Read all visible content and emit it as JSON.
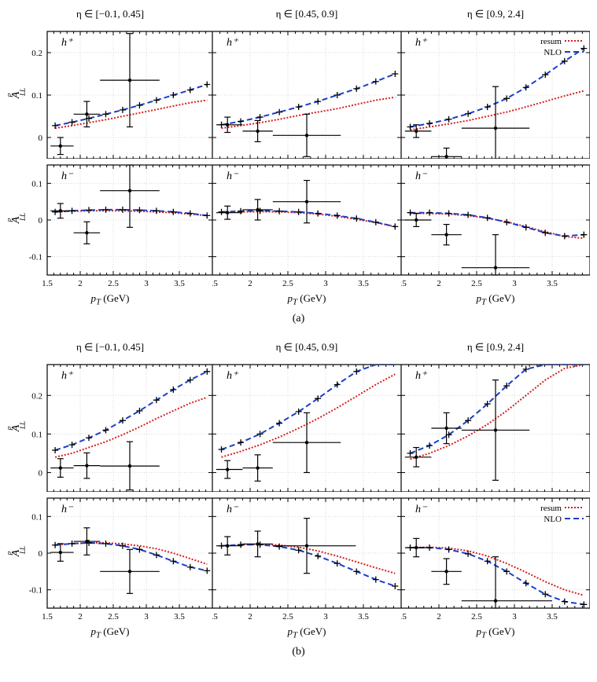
{
  "figure_a": {
    "caption": "(a)",
    "ylabel": "A_{LL}^{d}",
    "xlabel": "p_T (GeV)",
    "col_titles": [
      "η ∈ [−0.1, 0.45]",
      "η ∈ [0.45, 0.9]",
      "η ∈ [0.9, 2.4]"
    ],
    "legend": {
      "resum": "resum",
      "nlo": "NLO"
    },
    "colors": {
      "resum": "#d62020",
      "nlo": "#1a3fc8",
      "data": "#000000",
      "grid": "#d9d9d9",
      "frame": "#000000"
    },
    "xlim": [
      1.5,
      4.0
    ],
    "xticks": [
      1.5,
      2.0,
      2.5,
      3.0,
      3.5
    ],
    "top_row": {
      "label": "h^{+}",
      "ylim": [
        -0.05,
        0.25
      ],
      "yticks": [
        0,
        0.1,
        0.2
      ],
      "panels": [
        {
          "resum_y": [
            0.022,
            0.028,
            0.035,
            0.042,
            0.05,
            0.058,
            0.066,
            0.074,
            0.082,
            0.088
          ],
          "nlo_y": [
            0.028,
            0.036,
            0.045,
            0.055,
            0.065,
            0.076,
            0.088,
            0.1,
            0.112,
            0.125
          ],
          "data": [
            {
              "x": 1.7,
              "y": -0.02,
              "xl": 1.55,
              "xr": 1.9,
              "yl": -0.04,
              "yu": 0.0
            },
            {
              "x": 2.1,
              "y": 0.055,
              "xl": 1.9,
              "xr": 2.3,
              "yl": 0.025,
              "yu": 0.085
            },
            {
              "x": 2.75,
              "y": 0.135,
              "xl": 2.3,
              "xr": 3.2,
              "yl": 0.025,
              "yu": 0.245
            }
          ]
        },
        {
          "resum_y": [
            0.022,
            0.028,
            0.035,
            0.043,
            0.052,
            0.06,
            0.068,
            0.078,
            0.088,
            0.095
          ],
          "nlo_y": [
            0.03,
            0.038,
            0.048,
            0.06,
            0.072,
            0.085,
            0.1,
            0.115,
            0.132,
            0.15
          ],
          "data": [
            {
              "x": 1.7,
              "y": 0.03,
              "xl": 1.55,
              "xr": 1.9,
              "yl": 0.012,
              "yu": 0.048
            },
            {
              "x": 2.1,
              "y": 0.015,
              "xl": 1.9,
              "xr": 2.3,
              "yl": -0.01,
              "yu": 0.04
            },
            {
              "x": 2.75,
              "y": 0.005,
              "xl": 2.3,
              "xr": 3.2,
              "yl": -0.045,
              "yu": 0.055
            }
          ]
        },
        {
          "resum_y": [
            0.018,
            0.025,
            0.032,
            0.04,
            0.05,
            0.06,
            0.072,
            0.085,
            0.098,
            0.11
          ],
          "nlo_y": [
            0.025,
            0.033,
            0.043,
            0.056,
            0.072,
            0.092,
            0.118,
            0.148,
            0.18,
            0.21
          ],
          "data": [
            {
              "x": 1.7,
              "y": 0.015,
              "xl": 1.55,
              "xr": 1.9,
              "yl": 0.0,
              "yu": 0.03
            },
            {
              "x": 2.1,
              "y": -0.045,
              "xl": 1.9,
              "xr": 2.3,
              "yl": -0.065,
              "yu": -0.025
            },
            {
              "x": 2.75,
              "y": 0.022,
              "xl": 2.3,
              "xr": 3.2,
              "yl": -0.075,
              "yu": 0.12
            }
          ]
        }
      ]
    },
    "bot_row": {
      "label": "h^{−}",
      "ylim": [
        -0.15,
        0.15
      ],
      "yticks": [
        -0.1,
        0,
        0.1
      ],
      "panels": [
        {
          "resum_y": [
            0.022,
            0.024,
            0.025,
            0.025,
            0.025,
            0.024,
            0.022,
            0.02,
            0.016,
            0.012
          ],
          "nlo_y": [
            0.022,
            0.025,
            0.027,
            0.028,
            0.028,
            0.027,
            0.025,
            0.022,
            0.018,
            0.012
          ],
          "data": [
            {
              "x": 1.7,
              "y": 0.025,
              "xl": 1.55,
              "xr": 1.9,
              "yl": 0.005,
              "yu": 0.045
            },
            {
              "x": 2.1,
              "y": -0.035,
              "xl": 1.9,
              "xr": 2.3,
              "yl": -0.065,
              "yu": -0.005
            },
            {
              "x": 2.75,
              "y": 0.08,
              "xl": 2.3,
              "xr": 3.2,
              "yl": -0.02,
              "yu": 0.15
            }
          ]
        },
        {
          "resum_y": [
            0.02,
            0.022,
            0.023,
            0.022,
            0.02,
            0.016,
            0.01,
            0.002,
            -0.007,
            -0.018
          ],
          "nlo_y": [
            0.022,
            0.024,
            0.025,
            0.024,
            0.022,
            0.018,
            0.012,
            0.004,
            -0.006,
            -0.018
          ],
          "data": [
            {
              "x": 1.7,
              "y": 0.02,
              "xl": 1.55,
              "xr": 1.9,
              "yl": 0.002,
              "yu": 0.038
            },
            {
              "x": 2.1,
              "y": 0.028,
              "xl": 1.9,
              "xr": 2.3,
              "yl": 0.0,
              "yu": 0.056
            },
            {
              "x": 2.75,
              "y": 0.05,
              "xl": 2.3,
              "xr": 3.2,
              "yl": -0.008,
              "yu": 0.108
            }
          ]
        },
        {
          "resum_y": [
            0.018,
            0.018,
            0.016,
            0.012,
            0.005,
            -0.005,
            -0.018,
            -0.032,
            -0.045,
            -0.05
          ],
          "nlo_y": [
            0.02,
            0.02,
            0.018,
            0.014,
            0.006,
            -0.006,
            -0.02,
            -0.035,
            -0.044,
            -0.04
          ],
          "data": [
            {
              "x": 1.7,
              "y": 0.0,
              "xl": 1.55,
              "xr": 1.9,
              "yl": -0.018,
              "yu": 0.018
            },
            {
              "x": 2.1,
              "y": -0.04,
              "xl": 1.9,
              "xr": 2.3,
              "yl": -0.068,
              "yu": -0.012
            },
            {
              "x": 2.75,
              "y": -0.13,
              "xl": 2.3,
              "xr": 3.2,
              "yl": -0.15,
              "yu": -0.04
            }
          ]
        }
      ]
    }
  },
  "figure_b": {
    "caption": "(b)",
    "ylabel": "A_{LL}^{p}",
    "xlabel": "p_T (GeV)",
    "col_titles": [
      "η ∈ [−0.1, 0.45]",
      "η ∈ [0.45, 0.9]",
      "η ∈ [0.9, 2.4]"
    ],
    "legend": {
      "resum": "resum",
      "nlo": "NLO"
    },
    "colors": {
      "resum": "#d62020",
      "nlo": "#1a3fc8",
      "data": "#000000",
      "grid": "#d9d9d9",
      "frame": "#000000"
    },
    "xlim": [
      1.5,
      4.0
    ],
    "xticks": [
      1.5,
      2.0,
      2.5,
      3.0,
      3.5
    ],
    "top_row": {
      "label": "h^{+}",
      "ylim": [
        -0.05,
        0.28
      ],
      "yticks": [
        0,
        0.1,
        0.2
      ],
      "panels": [
        {
          "resum_y": [
            0.04,
            0.05,
            0.065,
            0.08,
            0.098,
            0.118,
            0.14,
            0.16,
            0.18,
            0.195
          ],
          "nlo_y": [
            0.058,
            0.072,
            0.09,
            0.11,
            0.135,
            0.16,
            0.188,
            0.215,
            0.24,
            0.262
          ],
          "data": [
            {
              "x": 1.7,
              "y": 0.012,
              "xl": 1.55,
              "xr": 1.9,
              "yl": -0.012,
              "yu": 0.036
            },
            {
              "x": 2.1,
              "y": 0.018,
              "xl": 1.9,
              "xr": 2.3,
              "yl": -0.015,
              "yu": 0.051
            },
            {
              "x": 2.75,
              "y": 0.017,
              "xl": 2.3,
              "xr": 3.2,
              "yl": -0.045,
              "yu": 0.08
            }
          ]
        },
        {
          "resum_y": [
            0.04,
            0.055,
            0.072,
            0.092,
            0.115,
            0.14,
            0.168,
            0.198,
            0.228,
            0.255
          ],
          "nlo_y": [
            0.06,
            0.078,
            0.1,
            0.128,
            0.158,
            0.192,
            0.228,
            0.262,
            0.28,
            0.28
          ],
          "data": [
            {
              "x": 1.7,
              "y": 0.008,
              "xl": 1.55,
              "xr": 1.9,
              "yl": -0.015,
              "yu": 0.031
            },
            {
              "x": 2.1,
              "y": 0.012,
              "xl": 1.9,
              "xr": 2.3,
              "yl": -0.022,
              "yu": 0.046
            },
            {
              "x": 2.75,
              "y": 0.078,
              "xl": 2.3,
              "xr": 3.2,
              "yl": 0.0,
              "yu": 0.155
            }
          ]
        },
        {
          "resum_y": [
            0.035,
            0.05,
            0.07,
            0.095,
            0.125,
            0.16,
            0.2,
            0.24,
            0.27,
            0.28
          ],
          "nlo_y": [
            0.05,
            0.07,
            0.098,
            0.135,
            0.178,
            0.225,
            0.268,
            0.28,
            0.28,
            0.28
          ],
          "data": [
            {
              "x": 1.7,
              "y": 0.04,
              "xl": 1.55,
              "xr": 1.9,
              "yl": 0.015,
              "yu": 0.065
            },
            {
              "x": 2.1,
              "y": 0.115,
              "xl": 1.9,
              "xr": 2.3,
              "yl": 0.075,
              "yu": 0.155
            },
            {
              "x": 2.75,
              "y": 0.11,
              "xl": 2.3,
              "xr": 3.2,
              "yl": -0.02,
              "yu": 0.24
            }
          ]
        }
      ]
    },
    "bot_row": {
      "label": "h^{−}",
      "ylim": [
        -0.15,
        0.15
      ],
      "yticks": [
        -0.1,
        0,
        0.1
      ],
      "panels": [
        {
          "resum_y": [
            0.022,
            0.026,
            0.028,
            0.028,
            0.025,
            0.02,
            0.012,
            0.0,
            -0.015,
            -0.03
          ],
          "nlo_y": [
            0.022,
            0.026,
            0.028,
            0.026,
            0.02,
            0.01,
            -0.005,
            -0.022,
            -0.038,
            -0.048
          ],
          "data": [
            {
              "x": 1.7,
              "y": 0.002,
              "xl": 1.55,
              "xr": 1.9,
              "yl": -0.022,
              "yu": 0.026
            },
            {
              "x": 2.1,
              "y": 0.032,
              "xl": 1.9,
              "xr": 2.3,
              "yl": -0.005,
              "yu": 0.069
            },
            {
              "x": 2.75,
              "y": -0.05,
              "xl": 2.3,
              "xr": 3.2,
              "yl": -0.11,
              "yu": 0.01
            }
          ]
        },
        {
          "resum_y": [
            0.02,
            0.023,
            0.024,
            0.022,
            0.016,
            0.006,
            -0.008,
            -0.024,
            -0.04,
            -0.055
          ],
          "nlo_y": [
            0.02,
            0.023,
            0.023,
            0.018,
            0.008,
            -0.008,
            -0.028,
            -0.05,
            -0.072,
            -0.09
          ],
          "data": [
            {
              "x": 1.7,
              "y": 0.02,
              "xl": 1.55,
              "xr": 1.9,
              "yl": -0.005,
              "yu": 0.045
            },
            {
              "x": 2.1,
              "y": 0.025,
              "xl": 1.9,
              "xr": 2.3,
              "yl": -0.01,
              "yu": 0.06
            },
            {
              "x": 2.75,
              "y": 0.02,
              "xl": 2.3,
              "xr": 3.4,
              "yl": -0.055,
              "yu": 0.095
            }
          ]
        },
        {
          "resum_y": [
            0.015,
            0.016,
            0.014,
            0.006,
            -0.008,
            -0.028,
            -0.052,
            -0.078,
            -0.1,
            -0.115
          ],
          "nlo_y": [
            0.015,
            0.015,
            0.01,
            -0.002,
            -0.022,
            -0.05,
            -0.082,
            -0.112,
            -0.132,
            -0.14
          ],
          "data": [
            {
              "x": 1.7,
              "y": 0.015,
              "xl": 1.55,
              "xr": 1.9,
              "yl": -0.01,
              "yu": 0.04
            },
            {
              "x": 2.1,
              "y": -0.05,
              "xl": 1.9,
              "xr": 2.3,
              "yl": -0.085,
              "yu": -0.015
            },
            {
              "x": 2.75,
              "y": -0.13,
              "xl": 2.3,
              "xr": 3.5,
              "yl": -0.15,
              "yu": -0.01
            }
          ]
        }
      ]
    }
  }
}
